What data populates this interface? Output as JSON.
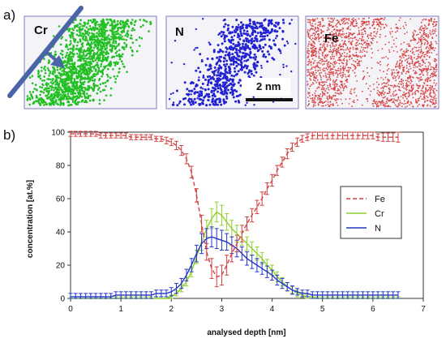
{
  "panel_a": {
    "tag": "a)",
    "maps": [
      {
        "label": "Cr",
        "color": "#22c022"
      },
      {
        "label": "N",
        "color": "#2323d2"
      },
      {
        "label": "Fe",
        "color": "#d94545"
      }
    ],
    "scale_bar": "2 nm",
    "arrow_color": "#4a64a8"
  },
  "panel_b": {
    "tag": "b)"
  },
  "chart_data": {
    "type": "line",
    "xlabel": "analysed depth [nm]",
    "ylabel": "concentration [at.%]",
    "xlim": [
      0,
      7
    ],
    "ylim": [
      0,
      100
    ],
    "xticks": [
      "0",
      "1",
      "2",
      "3",
      "4",
      "5",
      "6",
      "7"
    ],
    "yticks": [
      "0",
      "20",
      "40",
      "60",
      "80",
      "100"
    ],
    "grid": false,
    "legend": "right",
    "x": [
      0.0,
      0.1,
      0.2,
      0.3,
      0.4,
      0.5,
      0.6,
      0.7,
      0.8,
      0.9,
      1.0,
      1.1,
      1.2,
      1.3,
      1.4,
      1.5,
      1.6,
      1.7,
      1.8,
      1.9,
      2.0,
      2.1,
      2.2,
      2.3,
      2.4,
      2.5,
      2.6,
      2.7,
      2.8,
      2.9,
      3.0,
      3.1,
      3.2,
      3.3,
      3.4,
      3.5,
      3.6,
      3.7,
      3.8,
      3.9,
      4.0,
      4.1,
      4.2,
      4.3,
      4.4,
      4.5,
      4.6,
      4.7,
      4.8,
      4.9,
      5.0,
      5.1,
      5.2,
      5.3,
      5.4,
      5.5,
      5.6,
      5.7,
      5.8,
      5.9,
      6.0,
      6.1,
      6.2,
      6.3,
      6.4,
      6.5
    ],
    "series": [
      {
        "name": "Fe",
        "color": "#d04040",
        "dash": true,
        "values": [
          99,
          99,
          99,
          99,
          99,
          99,
          98,
          98,
          98,
          98,
          98,
          98,
          97,
          97,
          97,
          97,
          97,
          96,
          96,
          95,
          94,
          92,
          89,
          84,
          76,
          62,
          45,
          28,
          18,
          13,
          14,
          20,
          27,
          33,
          39,
          45,
          50,
          55,
          60,
          66,
          71,
          77,
          82,
          87,
          91,
          94,
          96,
          97,
          98,
          98,
          98,
          98,
          98,
          98,
          98,
          98,
          98,
          98,
          98,
          98,
          98,
          97,
          97,
          97,
          97,
          97
        ],
        "errors": [
          1.5,
          1.5,
          1.5,
          1.5,
          1.5,
          1.5,
          1.5,
          1.5,
          1.5,
          1.5,
          1.5,
          1.5,
          1.5,
          1.5,
          1.5,
          1.5,
          1.5,
          1.5,
          1.5,
          2,
          2,
          2.5,
          3,
          3,
          3.5,
          4,
          5,
          5,
          6,
          6,
          6,
          6,
          5,
          5,
          5,
          4,
          4,
          4,
          4,
          3.5,
          3.5,
          3,
          3,
          3,
          2.5,
          2.5,
          2,
          2,
          2,
          2,
          2,
          2,
          2,
          2,
          2,
          2,
          2,
          2,
          2,
          2,
          2,
          2,
          2.5,
          2.5,
          2.5,
          3
        ]
      },
      {
        "name": "Cr",
        "color": "#8fcf2a",
        "dash": false,
        "values": [
          0,
          0,
          0,
          0,
          0,
          0,
          0,
          0,
          0,
          0,
          0,
          0,
          0,
          0,
          0,
          0,
          0,
          0,
          0,
          0,
          1,
          3,
          6,
          10,
          16,
          25,
          34,
          42,
          48,
          52,
          50,
          46,
          42,
          39,
          36,
          33,
          30,
          27,
          24,
          20,
          17,
          13,
          10,
          7,
          5,
          3,
          2,
          1,
          1,
          0,
          0,
          0,
          0,
          0,
          0,
          0,
          0,
          0,
          0,
          0,
          0,
          0,
          0,
          0,
          0,
          0
        ],
        "errors": [
          1,
          1,
          1,
          1,
          1,
          1,
          1,
          1,
          1,
          1,
          1,
          1,
          1,
          1,
          1,
          1,
          1,
          1,
          1,
          1,
          1,
          1.5,
          2,
          2.5,
          3,
          4,
          5,
          5,
          6,
          6,
          6,
          5,
          5,
          5,
          4,
          4,
          4,
          4,
          3.5,
          3.5,
          3,
          3,
          2.5,
          2.5,
          2,
          2,
          1.5,
          1.5,
          1,
          1,
          1,
          1,
          1,
          1,
          1,
          1,
          1,
          1,
          1,
          1,
          1,
          1,
          1,
          1,
          1,
          1
        ]
      },
      {
        "name": "N",
        "color": "#2436c8",
        "dash": false,
        "values": [
          1,
          1,
          1,
          1,
          1,
          1,
          1,
          1,
          1,
          2,
          2,
          2,
          2,
          2,
          2,
          2,
          2,
          3,
          3,
          3,
          4,
          6,
          9,
          14,
          20,
          27,
          33,
          36,
          37,
          36,
          35,
          34,
          32,
          30,
          27,
          24,
          22,
          20,
          18,
          16,
          14,
          11,
          9,
          7,
          5,
          4,
          3,
          3,
          2,
          2,
          2,
          2,
          2,
          2,
          2,
          2,
          2,
          2,
          2,
          2,
          2,
          2,
          2,
          2,
          2,
          2
        ],
        "errors": [
          2,
          2,
          2,
          2,
          2,
          2,
          2,
          2,
          2,
          2,
          2,
          2,
          2,
          2,
          2,
          2,
          2,
          2,
          2,
          2,
          2.5,
          3,
          3,
          3.5,
          4,
          5,
          6,
          6,
          6,
          6,
          6,
          5,
          5,
          5,
          4,
          4,
          4,
          4,
          3.5,
          3.5,
          3,
          3,
          3,
          2.5,
          2.5,
          2,
          2,
          2,
          2,
          2,
          2,
          2,
          2,
          2,
          2,
          2,
          2,
          2,
          2,
          2,
          2,
          2,
          2,
          2,
          2,
          2
        ]
      }
    ]
  }
}
